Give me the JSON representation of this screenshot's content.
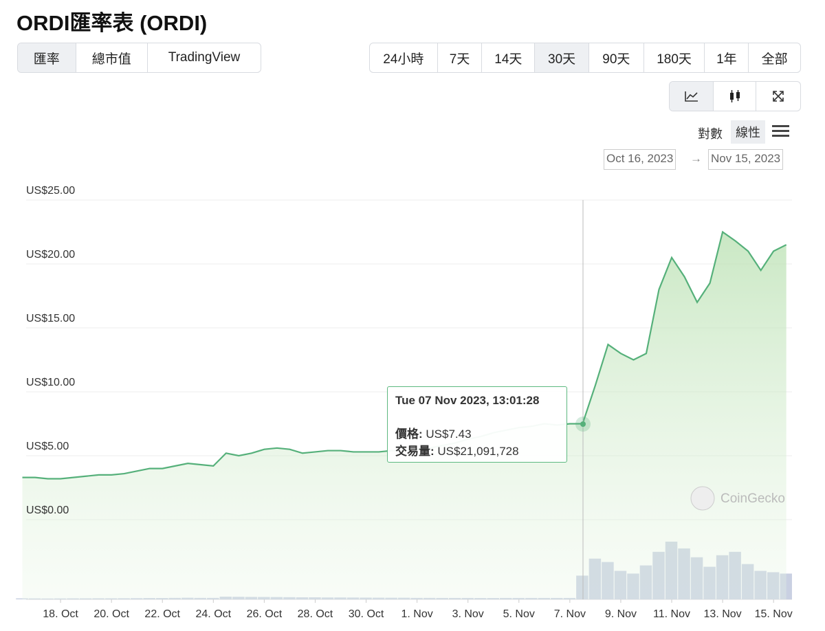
{
  "ui": {
    "title": "ORDI匯率表 (ORDI)",
    "tabs": [
      "匯率",
      "總市值",
      "TradingView"
    ],
    "ranges": [
      "24小時",
      "7天",
      "14天",
      "30天",
      "90天",
      "180天",
      "1年",
      "全部"
    ],
    "scales": [
      "對數",
      "線性"
    ],
    "date_from": "Oct 16, 2023",
    "date_arrow": "→",
    "date_to": "Nov 15, 2023",
    "watermark": "CoinGecko"
  },
  "tooltip": {
    "date": "Tue 07 Nov 2023, 13:01:28",
    "price_label": "價格:",
    "price": "US$7.43",
    "volume_label": "交易量:",
    "volume": "US$21,091,728"
  },
  "chart_data": {
    "type": "line",
    "categories": [
      null,
      null,
      null,
      "18. Oct",
      null,
      null,
      null,
      "20. Oct",
      null,
      null,
      null,
      "22. Oct",
      null,
      null,
      null,
      "24. Oct",
      null,
      null,
      null,
      "26. Oct",
      null,
      null,
      null,
      "28. Oct",
      null,
      null,
      null,
      "30. Oct",
      null,
      null,
      null,
      "1. Nov",
      null,
      null,
      null,
      "3. Nov",
      null,
      null,
      null,
      "5. Nov",
      null,
      null,
      null,
      "7. Nov",
      null,
      null,
      null,
      "9. Nov",
      null,
      null,
      null,
      "11. Nov",
      null,
      null,
      null,
      "13. Nov",
      null,
      null,
      null,
      "15. Nov",
      null
    ],
    "series": [
      {
        "color": "#55b07a",
        "values": [
          3.3,
          3.3,
          3.2,
          3.2,
          3.3,
          3.4,
          3.5,
          3.5,
          3.6,
          3.8,
          4.0,
          4.0,
          4.2,
          4.4,
          4.3,
          4.2,
          5.2,
          5.0,
          5.2,
          5.5,
          5.6,
          5.5,
          5.2,
          5.3,
          5.4,
          5.4,
          5.3,
          5.3,
          5.3,
          5.4,
          5.4,
          5.5,
          5.6,
          5.8,
          6.0,
          6.3,
          6.5,
          6.8,
          7.0,
          7.2,
          7.3,
          7.5,
          7.4,
          7.5,
          7.5,
          10.5,
          13.7,
          13.0,
          12.5,
          13.0,
          18.0,
          20.5,
          19.0,
          17.0,
          18.5,
          22.5,
          21.8,
          21.0,
          19.5,
          21.0,
          21.5
        ]
      },
      {
        "color": "#c9d0e2",
        "type": "bar",
        "values": [
          15000000,
          14000000,
          13000000,
          14000000,
          15000000,
          15000000,
          16000000,
          16000000,
          17000000,
          18000000,
          20000000,
          20000000,
          22000000,
          24000000,
          22000000,
          22000000,
          40000000,
          38000000,
          36000000,
          35000000,
          34000000,
          32000000,
          30000000,
          30000000,
          28000000,
          28000000,
          27000000,
          26000000,
          25000000,
          24000000,
          24000000,
          22000000,
          22000000,
          21000000,
          21000000,
          21000000,
          20000000,
          20000000,
          21000000,
          21000000,
          21000000,
          21000000,
          21000000,
          21000000,
          350000000,
          600000000,
          550000000,
          420000000,
          380000000,
          500000000,
          700000000,
          850000000,
          750000000,
          620000000,
          480000000,
          650000000,
          700000000,
          520000000,
          420000000,
          400000000,
          380000000
        ]
      }
    ],
    "ylim": [
      0,
      25
    ],
    "yticks": [
      {
        "value": 0,
        "label": "US$0.00"
      },
      {
        "value": 5,
        "label": "US$5.00"
      },
      {
        "value": 10,
        "label": "US$10.00"
      },
      {
        "value": 15,
        "label": "US$15.00"
      },
      {
        "value": 20,
        "label": "US$20.00"
      },
      {
        "value": 25,
        "label": "US$25.00"
      }
    ],
    "grid": true
  }
}
